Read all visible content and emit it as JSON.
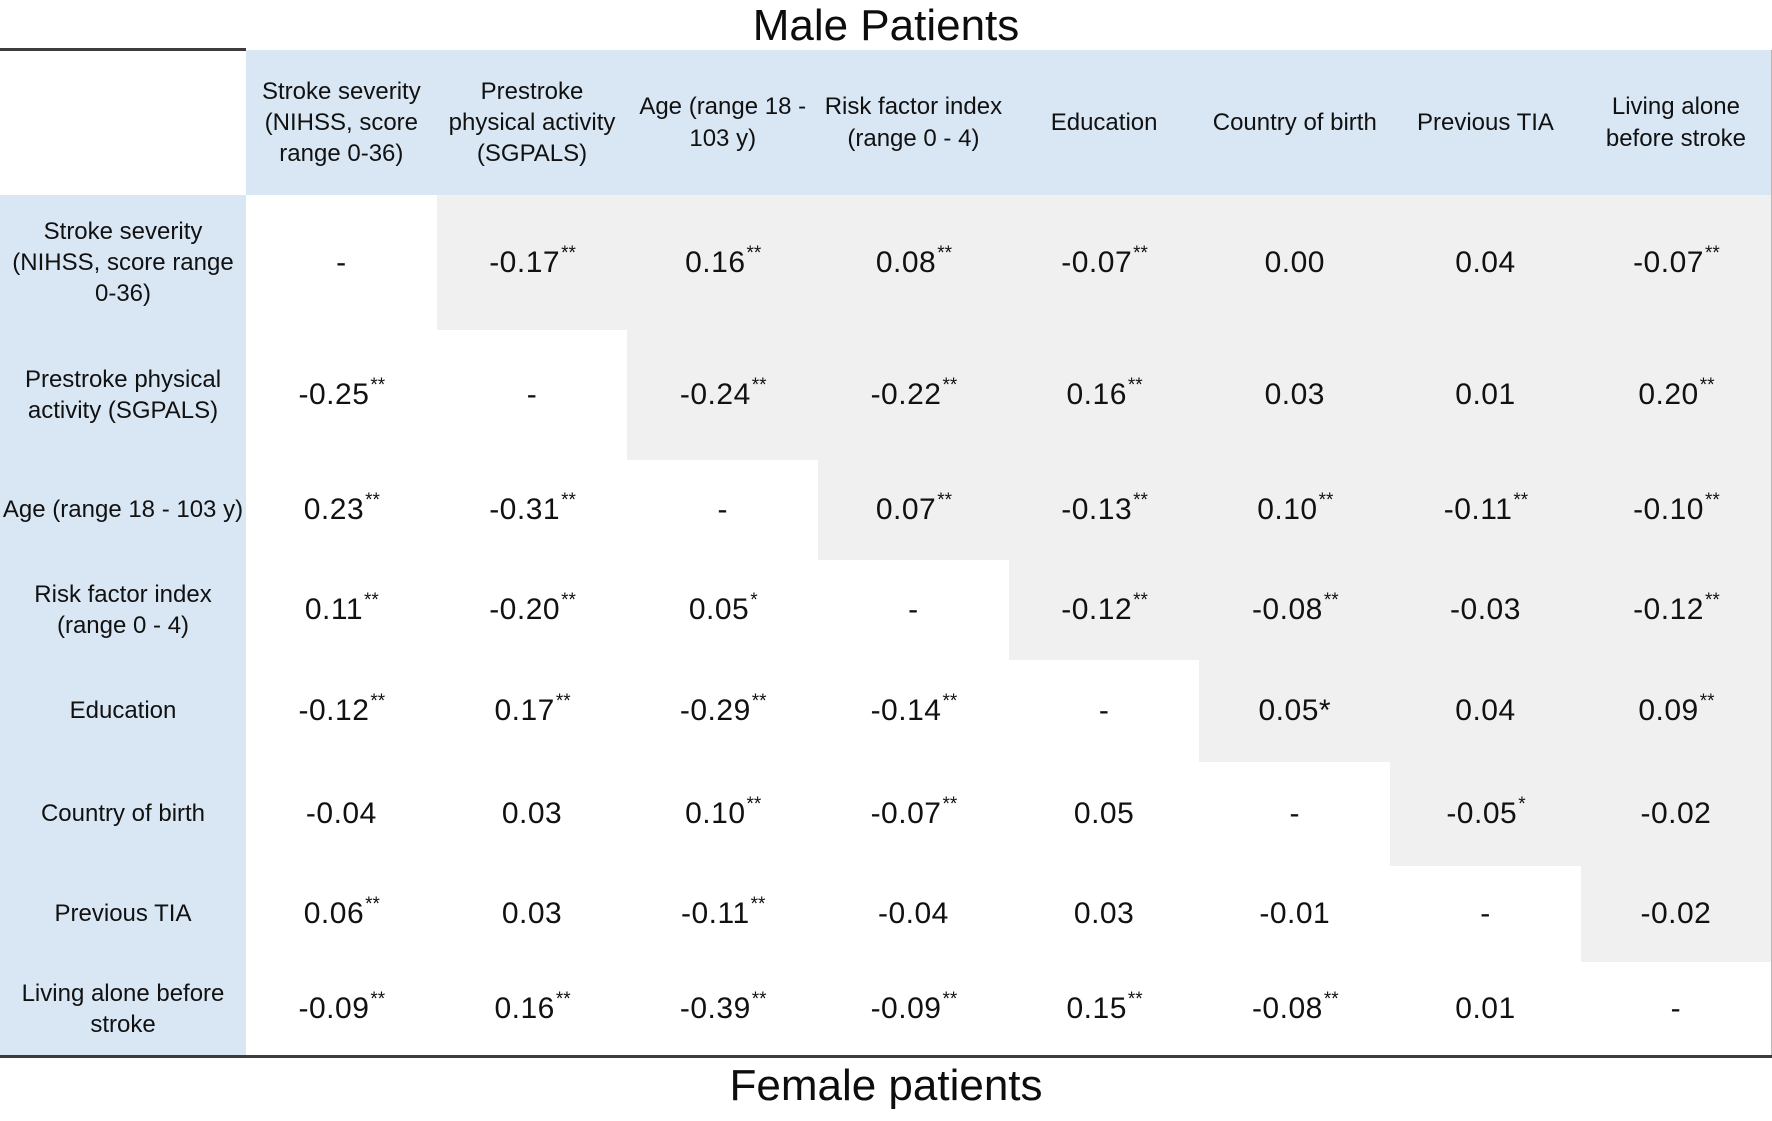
{
  "titles": {
    "top": "Male Patients",
    "bottom": "Female patients"
  },
  "colors": {
    "header_bg": "#d9e7f4",
    "upper_triangle_bg": "#f0f0f0",
    "lower_triangle_bg": "#ffffff",
    "rule_line": "#3c3c3c",
    "text": "#111111"
  },
  "chart_data": {
    "type": "table",
    "title": "Male Patients",
    "subtitle_bottom": "Female patients",
    "description_visible": "Correlation matrix; upper triangle shaded grey, lower triangle white, diagonal marked with dash",
    "variables": [
      "Stroke severity (NIHSS, score range 0-36)",
      "Prestroke physical activity (SGPALS)",
      "Age (range 18 - 103 y)",
      "Risk factor index (range 0 - 4)",
      "Education",
      "Country of birth",
      "Previous TIA",
      "Living alone before stroke"
    ],
    "cells": [
      [
        "-",
        "-0.17**",
        "0.16**",
        "0.08**",
        "-0.07**",
        "0.00",
        "0.04",
        "-0.07**"
      ],
      [
        "-0.25**",
        "-",
        "-0.24**",
        "-0.22**",
        "0.16**",
        "0.03",
        "0.01",
        "0.20**"
      ],
      [
        "0.23**",
        "-0.31**",
        "-",
        "0.07**",
        "-0.13**",
        "0.10**",
        "-0.11**",
        "-0.10**"
      ],
      [
        "0.11**",
        "-0.20**",
        "0.05*",
        "-",
        "-0.12**",
        "-0.08**",
        "-0.03",
        "-0.12**"
      ],
      [
        "-0.12**",
        "0.17**",
        "-0.29**",
        "-0.14**",
        "-",
        "0.05*",
        "0.04",
        "0.09**"
      ],
      [
        "-0.04",
        "0.03",
        "0.10**",
        "-0.07**",
        "0.05",
        "-",
        "-0.05*",
        "-0.02"
      ],
      [
        "0.06**",
        "0.03",
        "-0.11**",
        "-0.04",
        "0.03",
        "-0.01",
        "-",
        "-0.02"
      ],
      [
        "-0.09**",
        "0.16**",
        "-0.39**",
        "-0.09**",
        "0.15**",
        "-0.08**",
        "0.01",
        "-"
      ]
    ],
    "inline_star_cells": [
      [
        4,
        5
      ]
    ],
    "legend": {
      "double_asterisk": "**",
      "single_asterisk": "*"
    }
  }
}
